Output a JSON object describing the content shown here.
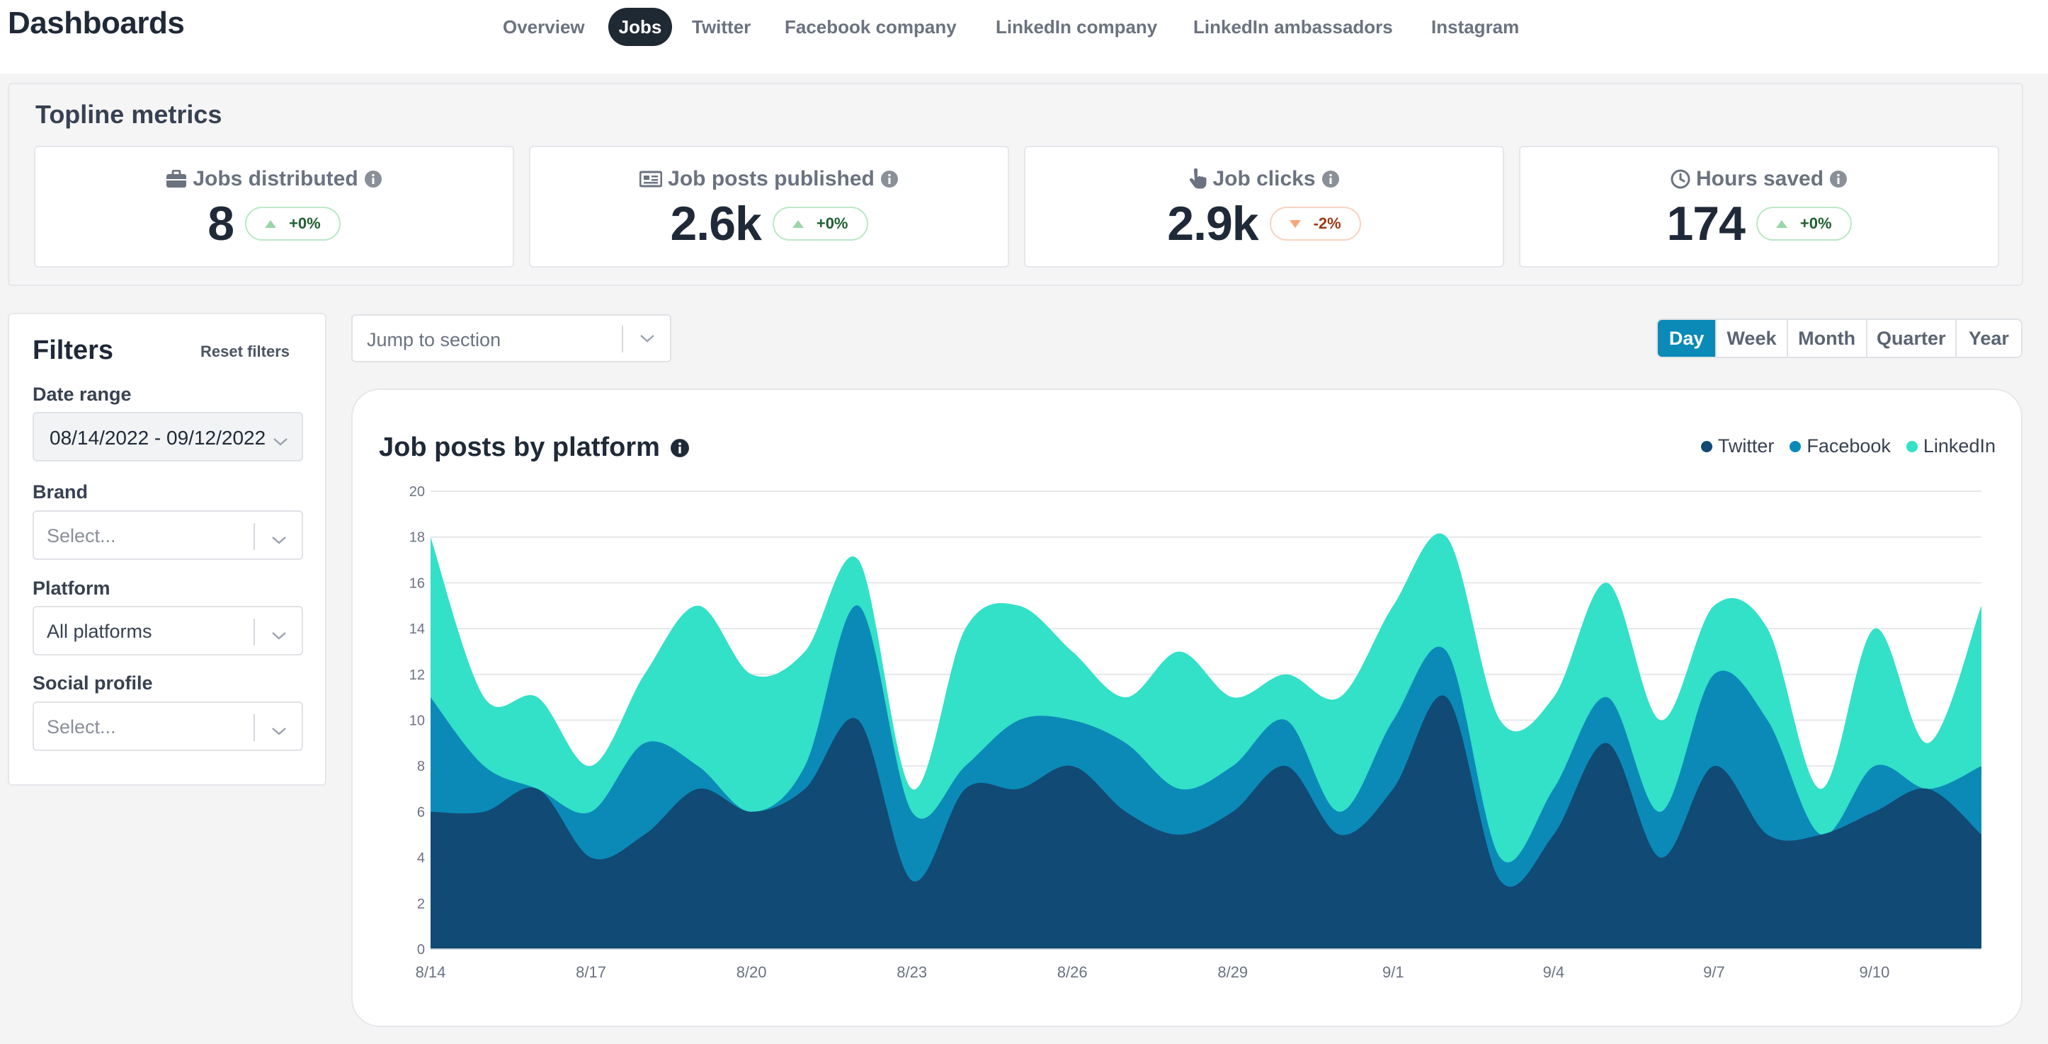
{
  "app": {
    "title": "Dashboards"
  },
  "nav": {
    "tabs": [
      {
        "label": "Overview",
        "active": false
      },
      {
        "label": "Jobs",
        "active": true
      },
      {
        "label": "Twitter",
        "active": false
      },
      {
        "label": "Facebook company",
        "active": false
      },
      {
        "label": "LinkedIn company",
        "active": false
      },
      {
        "label": "LinkedIn ambassadors",
        "active": false
      },
      {
        "label": "Instagram",
        "active": false
      }
    ]
  },
  "topline": {
    "title": "Topline metrics",
    "metrics": [
      {
        "label": "Jobs distributed",
        "icon": "briefcase-icon",
        "value": "8",
        "delta": "+0%",
        "direction": "up"
      },
      {
        "label": "Job posts published",
        "icon": "newspaper-icon",
        "value": "2.6k",
        "delta": "+0%",
        "direction": "up"
      },
      {
        "label": "Job clicks",
        "icon": "pointer-hand-icon",
        "value": "2.9k",
        "delta": "-2%",
        "direction": "down"
      },
      {
        "label": "Hours saved",
        "icon": "clock-icon",
        "value": "174",
        "delta": "+0%",
        "direction": "up"
      }
    ]
  },
  "filters": {
    "title": "Filters",
    "reset_label": "Reset filters",
    "date_range": {
      "label": "Date range",
      "value": "08/14/2022 - 09/12/2022"
    },
    "brand": {
      "label": "Brand",
      "placeholder": "Select..."
    },
    "platform": {
      "label": "Platform",
      "value": "All platforms"
    },
    "social_profile": {
      "label": "Social profile",
      "placeholder": "Select..."
    }
  },
  "jump": {
    "placeholder": "Jump to section"
  },
  "period": {
    "options": [
      "Day",
      "Week",
      "Month",
      "Quarter",
      "Year"
    ],
    "selected": "Day"
  },
  "colors": {
    "twitter": "#114a74",
    "facebook": "#0b8ab8",
    "linkedin": "#33e0c8",
    "accent": "#0b8ab8",
    "nav_active_bg": "#1f2933"
  },
  "chart_data": {
    "type": "area",
    "stacked": true,
    "title": "Job posts by platform",
    "x": [
      "8/14",
      "8/15",
      "8/16",
      "8/17",
      "8/18",
      "8/19",
      "8/20",
      "8/21",
      "8/22",
      "8/23",
      "8/24",
      "8/25",
      "8/26",
      "8/27",
      "8/28",
      "8/29",
      "8/30",
      "8/31",
      "9/1",
      "9/2",
      "9/3",
      "9/4",
      "9/5",
      "9/6",
      "9/7",
      "9/8",
      "9/9",
      "9/10",
      "9/11",
      "9/12"
    ],
    "x_tick_labels": [
      "8/14",
      "8/17",
      "8/20",
      "8/23",
      "8/26",
      "8/29",
      "9/1",
      "9/4",
      "9/7",
      "9/10"
    ],
    "y_ticks": [
      0,
      2,
      4,
      6,
      8,
      10,
      12,
      14,
      16,
      18,
      20
    ],
    "ylim": [
      0,
      20
    ],
    "legend_position": "top-right",
    "grid": true,
    "series": [
      {
        "name": "Twitter",
        "color": "#114a74",
        "values": [
          6,
          6,
          7,
          4,
          5,
          7,
          6,
          7,
          10,
          3,
          7,
          7,
          8,
          6,
          5,
          6,
          8,
          5,
          7,
          11,
          3,
          5,
          9,
          4,
          8,
          5,
          5,
          6,
          7,
          5
        ]
      },
      {
        "name": "Facebook",
        "color": "#0b8ab8",
        "values": [
          5,
          2,
          0,
          2,
          4,
          1,
          0,
          1,
          5,
          3,
          1,
          3,
          2,
          3,
          2,
          2,
          2,
          1,
          3,
          2,
          1,
          2,
          2,
          2,
          4,
          5,
          0,
          2,
          0,
          3
        ]
      },
      {
        "name": "LinkedIn",
        "color": "#33e0c8",
        "values": [
          7,
          3,
          4,
          2,
          3,
          7,
          6,
          5,
          2,
          1,
          6,
          5,
          3,
          2,
          6,
          3,
          2,
          5,
          5,
          5,
          6,
          4,
          5,
          4,
          3,
          4,
          2,
          6,
          2,
          7
        ]
      }
    ]
  }
}
